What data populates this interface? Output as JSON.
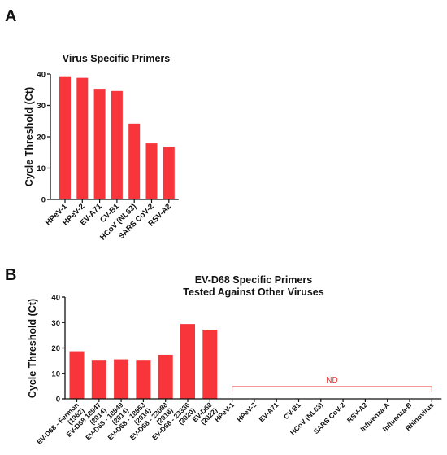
{
  "panels": {
    "a": {
      "letter": "A"
    },
    "b": {
      "letter": "B"
    }
  },
  "colors": {
    "bar": "#f7353b",
    "nd": "#e8332e",
    "axis": "#111111"
  },
  "chart_data": [
    {
      "type": "bar",
      "title": "Virus Specific Primers",
      "xlabel": "",
      "ylabel": "Cycle Threshold (Ct)",
      "ylim": [
        0,
        40
      ],
      "yticks": [
        "0",
        "10",
        "20",
        "30",
        "40"
      ],
      "categories": [
        "HPeV-1",
        "HPeV-2",
        "EV-A71",
        "CV-B1",
        "HCoV (NL63)",
        "SARS CoV-2",
        "RSV-A2"
      ],
      "values": [
        39.3,
        38.8,
        35.3,
        34.6,
        24.2,
        17.9,
        16.8
      ],
      "grid": false
    },
    {
      "type": "bar",
      "title_lines": [
        "EV-D68 Specific Primers",
        "Tested Against Other Viruses"
      ],
      "xlabel": "",
      "ylabel": "Cycle Threshold (Ct)",
      "ylim": [
        0,
        40
      ],
      "yticks": [
        "0",
        "10",
        "20",
        "30",
        "40"
      ],
      "categories": [
        [
          "EV-D68 - Fermon",
          "(1962)"
        ],
        [
          "EV-D68 18947",
          "(2014)"
        ],
        [
          "EV-D68 - 18949",
          "(2014)"
        ],
        [
          "EV-D68 - 18953",
          "(2014)"
        ],
        [
          "EV-D68 - 23088",
          "(2018)"
        ],
        [
          "EV-D68 - 23336",
          "(2020)"
        ],
        [
          "EV-D68",
          "(2022)"
        ],
        [
          "HPeV-1"
        ],
        [
          "HPeV-2"
        ],
        [
          "EV-A71"
        ],
        [
          "CV-B1"
        ],
        [
          "HCoV (NL63)"
        ],
        [
          "SARS CoV-2"
        ],
        [
          "RSV-A2"
        ],
        [
          "Influenza-A"
        ],
        [
          "Influenza-B"
        ],
        [
          "Rhinovirus"
        ]
      ],
      "values": [
        18.7,
        15.3,
        15.5,
        15.3,
        17.3,
        29.4,
        27.2,
        null,
        null,
        null,
        null,
        null,
        null,
        null,
        null,
        null,
        null
      ],
      "annotation": "ND",
      "grid": false
    }
  ]
}
